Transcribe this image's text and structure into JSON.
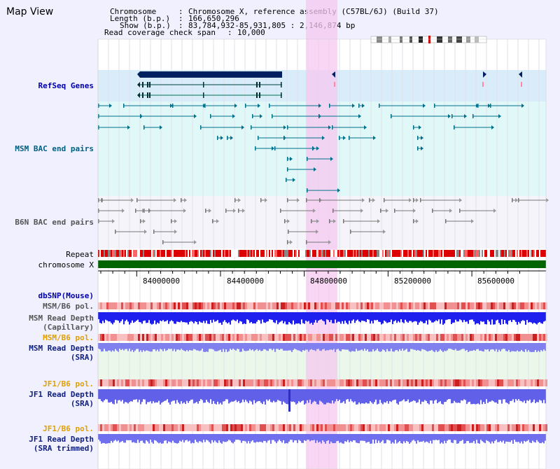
{
  "title": "Map View",
  "info": {
    "chromosome_key": "Chromosome",
    "chromosome_val": "Chromosome X, reference assembly (C57BL/6J) (Build 37)",
    "length_key": "Length (b.p.)",
    "length_val": "166,650,296",
    "show_key": "Show (b.p.)",
    "show_val": "83,784,932-85,931,805 : 2,146,874 bp",
    "coverage_key": "Read coverage check span",
    "coverage_val": "10,000"
  },
  "tracks": {
    "refseq": "RefSeq Genes",
    "msm_bac": "MSM BAC end pairs",
    "b6n_bac": "B6N BAC end pairs",
    "repeat": "Repeat",
    "chromosome": "chromosome X",
    "dbsnp": "dbSNP(Mouse)",
    "msm_b6_pol_1": "MSM/B6 pol.",
    "msm_read_depth_cap": "MSM Read Depth\n(Capillary)",
    "msm_b6_pol_2": "MSM/B6 pol.",
    "msm_read_depth_sra": "MSM Read Depth\n(SRA)",
    "jf1_b6_pol_1": "JF1/B6 pol.",
    "jf1_read_depth_sra": "JF1 Read Depth\n(SRA)",
    "jf1_b6_pol_2": "JF1/B6 pol.",
    "jf1_read_depth_trim": "JF1 Read Depth\n(SRA trimmed)"
  },
  "axis": {
    "ticks": [
      "84000000",
      "84400000",
      "84800000",
      "85200000",
      "85600000"
    ]
  },
  "colors": {
    "highlight": "#f5c8f0",
    "refseq_bg": "#d8ecfa",
    "bac_bg": "#e0f8f8",
    "chromosome": "#006400",
    "depth": "#0000ff"
  }
}
